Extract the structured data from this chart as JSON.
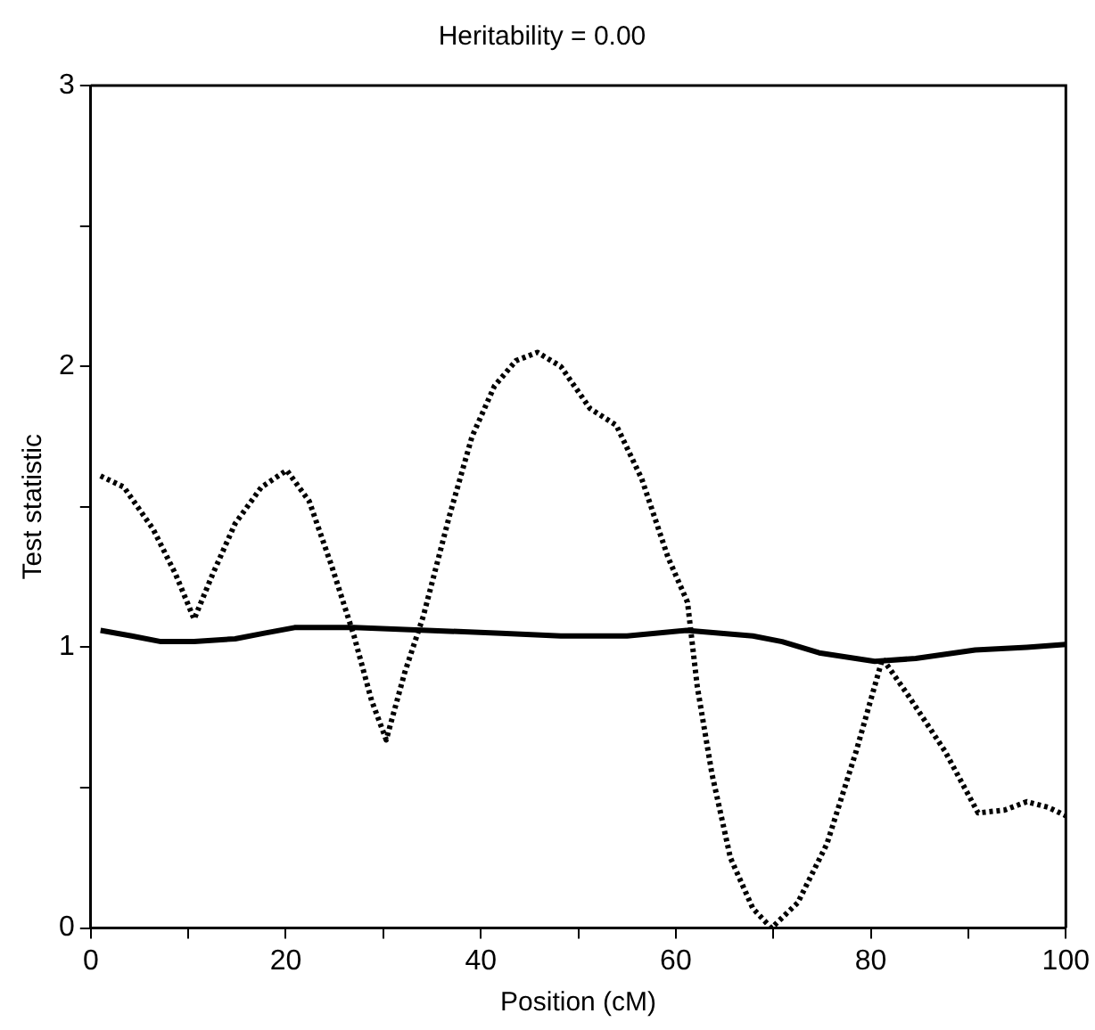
{
  "chart_data": {
    "type": "line",
    "title": "Heritability = 0.00",
    "xlabel": "Position (cM)",
    "ylabel": "Test statistic",
    "xlim": [
      0,
      100
    ],
    "xticks": [
      0,
      {
        "value": 10,
        "label": null
      },
      20,
      {
        "value": 30,
        "label": null
      },
      40,
      {
        "value": 50,
        "label": null
      },
      60,
      {
        "value": 70,
        "label": null
      },
      80,
      {
        "value": 90,
        "label": null
      },
      100
    ],
    "ylim": [
      0,
      3
    ],
    "yticks": [
      0,
      {
        "value": 0.5,
        "label": null
      },
      1,
      {
        "value": 1.5,
        "label": null
      },
      2,
      {
        "value": 2.5,
        "label": null
      },
      3
    ],
    "grid": false,
    "legend": false,
    "marker": "none",
    "series": [
      {
        "color": "#000000",
        "line_style": "dotted",
        "x": [
          1.0,
          3.4,
          6.4,
          8.7,
          10.6,
          12.5,
          14.8,
          17.5,
          20.1,
          22.4,
          24.7,
          27,
          28.8,
          30.3,
          32.2,
          34.1,
          36.8,
          39.1,
          41.4,
          43.6,
          45.8,
          48.2,
          51.2,
          53.9,
          56.5,
          59.2,
          61.2,
          62.2,
          63.7,
          65.6,
          67.9,
          69.8,
          72.5,
          75.5,
          78.5,
          81.2,
          83.8,
          87.6,
          91.0,
          93.7,
          96.0,
          98.2,
          100
        ],
        "values": [
          1.61,
          1.57,
          1.42,
          1.26,
          1.1,
          1.26,
          1.44,
          1.57,
          1.63,
          1.52,
          1.29,
          1.04,
          0.81,
          0.67,
          0.91,
          1.11,
          1.47,
          1.75,
          1.93,
          2.02,
          2.05,
          2.0,
          1.85,
          1.79,
          1.6,
          1.32,
          1.16,
          0.86,
          0.55,
          0.25,
          0.07,
          0.0,
          0.09,
          0.3,
          0.63,
          0.96,
          0.83,
          0.63,
          0.41,
          0.42,
          0.45,
          0.43,
          0.4
        ]
      },
      {
        "color": "#000000",
        "line_style": "solid",
        "x": [
          1,
          4.2,
          7.2,
          10.6,
          14.8,
          17.8,
          20.9,
          27,
          34.5,
          42.1,
          48.2,
          55,
          61.1,
          67.9,
          70.9,
          74.7,
          80.4,
          84.6,
          90.7,
          96,
          100
        ],
        "values": [
          1.06,
          1.04,
          1.02,
          1.02,
          1.03,
          1.05,
          1.07,
          1.07,
          1.06,
          1.05,
          1.04,
          1.04,
          1.06,
          1.04,
          1.02,
          0.98,
          0.95,
          0.96,
          0.99,
          1.0,
          1.01
        ]
      }
    ]
  }
}
